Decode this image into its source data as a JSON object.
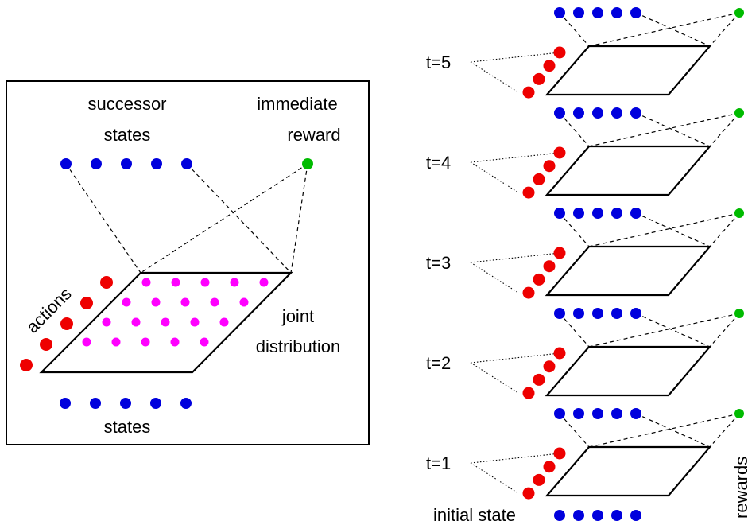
{
  "colors": {
    "state": "#0000dd",
    "action": "#ee0000",
    "reward": "#00bb00",
    "joint": "#ff00ff"
  },
  "left_panel": {
    "successor_states_label": [
      "successor",
      "states"
    ],
    "immediate_reward_label": [
      "immediate",
      "reward"
    ],
    "actions_label": "actions",
    "joint_distribution_label": [
      "joint",
      "distribution"
    ],
    "states_label": "states"
  },
  "right_panel": {
    "time_labels": [
      "t=5",
      "t=4",
      "t=3",
      "t=2",
      "t=1"
    ],
    "initial_state_label": "initial state",
    "rewards_label": "rewards"
  }
}
